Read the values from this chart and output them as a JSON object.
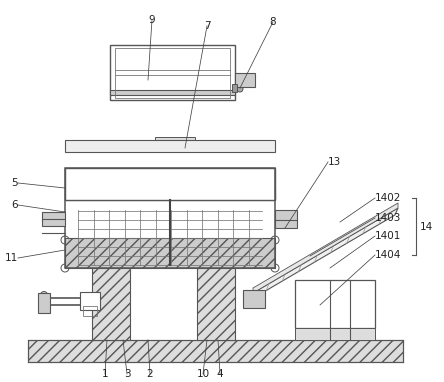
{
  "bg_color": "#ffffff",
  "line_color": "#555555",
  "label_color": "#222222",
  "label_fs": 7.5
}
